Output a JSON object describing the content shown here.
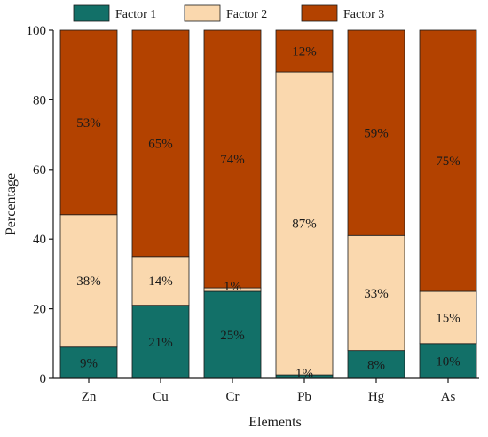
{
  "chart_data": {
    "type": "bar",
    "stacked": true,
    "categories": [
      "Zn",
      "Cu",
      "Cr",
      "Pb",
      "Hg",
      "As"
    ],
    "series": [
      {
        "name": "Factor 1",
        "color": "#127068",
        "values": [
          9,
          21,
          25,
          1,
          8,
          10
        ]
      },
      {
        "name": "Factor 2",
        "color": "#fad8ae",
        "values": [
          38,
          14,
          1,
          87,
          33,
          15
        ]
      },
      {
        "name": "Factor 3",
        "color": "#b34200",
        "values": [
          53,
          65,
          74,
          12,
          59,
          75
        ]
      }
    ],
    "data_labels": [
      [
        "9%",
        "21%",
        "25%",
        "1%",
        "8%",
        "10%"
      ],
      [
        "38%",
        "14%",
        "1%",
        "87%",
        "33%",
        "15%"
      ],
      [
        "53%",
        "65%",
        "74%",
        "12%",
        "59%",
        "75%"
      ]
    ],
    "xlabel": "Elements",
    "ylabel": "Percentage",
    "ylim": [
      0,
      100
    ],
    "yticks": [
      0,
      20,
      40,
      60,
      80,
      100
    ],
    "grid": false,
    "legend_position": "top"
  }
}
